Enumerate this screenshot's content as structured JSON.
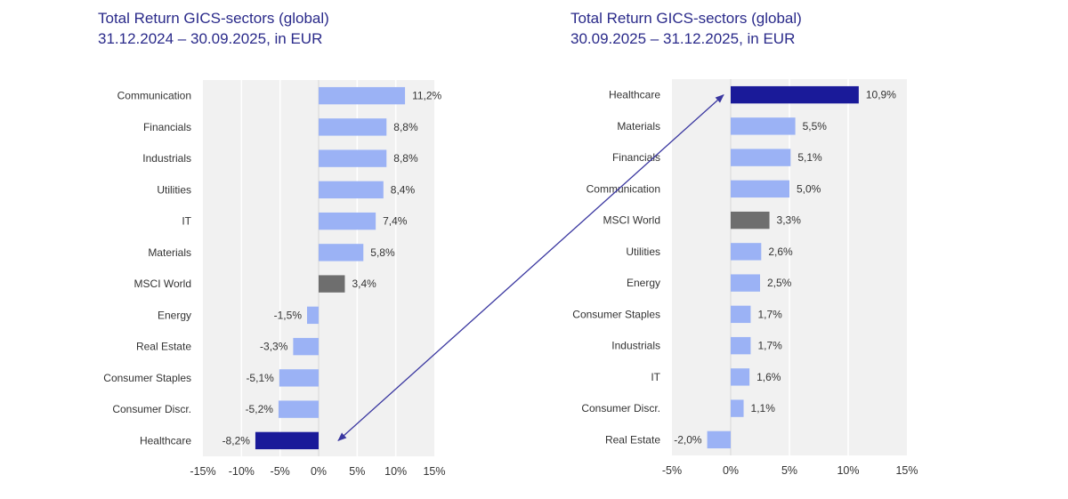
{
  "colors": {
    "sector": "#9bb2f5",
    "highlight": "#1a1a99",
    "benchmark": "#6e6e6e",
    "plot_bg": "#f1f1f1",
    "grid": "#ffffff",
    "arrow": "#3a37a0",
    "title": "#2a2a8a"
  },
  "chart_data": [
    {
      "type": "bar",
      "orientation": "horizontal",
      "title": "Total Return GICS-sectors (global)",
      "subtitle": "31.12.2024 – 30.09.2025, in EUR",
      "categories": [
        "Communication",
        "Financials",
        "Industrials",
        "Utilities",
        "IT",
        "Materials",
        "MSCI World",
        "Energy",
        "Real Estate",
        "Consumer Staples",
        "Consumer Discr.",
        "Healthcare"
      ],
      "values": [
        11.2,
        8.8,
        8.8,
        8.4,
        7.4,
        5.8,
        3.4,
        -1.5,
        -3.3,
        -5.1,
        -5.2,
        -8.2
      ],
      "labels": [
        "11,2%",
        "8,8%",
        "8,8%",
        "8,4%",
        "7,4%",
        "5,8%",
        "3,4%",
        "-1,5%",
        "-3,3%",
        "-5,1%",
        "-5,2%",
        "-8,2%"
      ],
      "highlight": "Healthcare",
      "benchmark": "MSCI World",
      "xlim": [
        -15,
        15
      ],
      "xticks": [
        -15,
        -10,
        -5,
        0,
        5,
        10,
        15
      ],
      "xtick_labels": [
        "-15%",
        "-10%",
        "-5%",
        "0%",
        "5%",
        "10%",
        "15%"
      ],
      "xlabel": "",
      "ylabel": "",
      "grid": true,
      "legend": "none"
    },
    {
      "type": "bar",
      "orientation": "horizontal",
      "title": "Total Return GICS-sectors (global)",
      "subtitle": "30.09.2025 – 31.12.2025, in EUR",
      "categories": [
        "Healthcare",
        "Materials",
        "Financials",
        "Communication",
        "MSCI World",
        "Utilities",
        "Energy",
        "Consumer Staples",
        "Industrials",
        "IT",
        "Consumer Discr.",
        "Real Estate"
      ],
      "values": [
        10.9,
        5.5,
        5.1,
        5.0,
        3.3,
        2.6,
        2.5,
        1.7,
        1.7,
        1.6,
        1.1,
        -2.0
      ],
      "labels": [
        "10,9%",
        "5,5%",
        "5,1%",
        "5,0%",
        "3,3%",
        "2,6%",
        "2,5%",
        "1,7%",
        "1,7%",
        "1,6%",
        "1,1%",
        "-2,0%"
      ],
      "highlight": "Healthcare",
      "benchmark": "MSCI World",
      "xlim": [
        -5,
        15
      ],
      "xticks": [
        -5,
        0,
        5,
        10,
        15
      ],
      "xtick_labels": [
        "-5%",
        "0%",
        "5%",
        "10%",
        "15%"
      ],
      "xlabel": "",
      "ylabel": "",
      "grid": true,
      "legend": "none"
    }
  ]
}
